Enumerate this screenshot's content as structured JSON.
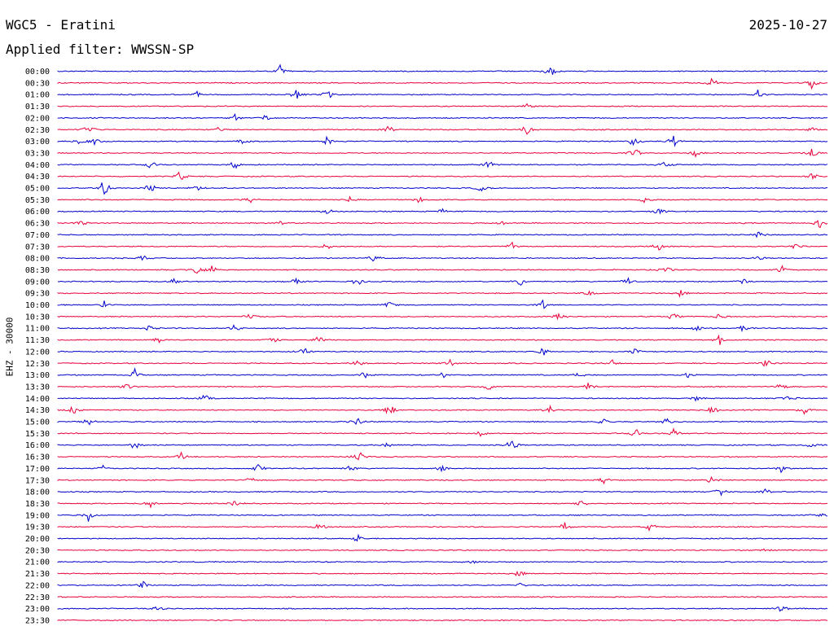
{
  "header": {
    "station": "WGC5 - Eratini",
    "date": "2025-10-27",
    "filter": "Applied filter: WWSSN-SP"
  },
  "colors": {
    "odd_trace": "#0000cc",
    "even_trace": "#e8003a",
    "text": "#000000",
    "background": "#ffffff"
  },
  "chart_data": {
    "type": "line",
    "title": "WGC5 - Eratini",
    "subtitle": "Applied filter: WWSSN-SP",
    "ylabel": "EHZ - 30000",
    "xlabel": "",
    "categories": [
      "00:00",
      "00:30",
      "01:00",
      "01:30",
      "02:00",
      "02:30",
      "03:00",
      "03:30",
      "04:00",
      "04:30",
      "05:00",
      "05:30",
      "06:00",
      "06:30",
      "07:00",
      "07:30",
      "08:00",
      "08:30",
      "09:00",
      "09:30",
      "10:00",
      "10:30",
      "11:00",
      "11:30",
      "12:00",
      "12:30",
      "13:00",
      "13:30",
      "14:00",
      "14:30",
      "15:00",
      "15:30",
      "16:00",
      "16:30",
      "17:00",
      "17:30",
      "18:00",
      "18:30",
      "19:00",
      "19:30",
      "20:00",
      "20:30",
      "21:00",
      "21:30",
      "22:00",
      "22:30",
      "23:00",
      "23:30"
    ],
    "series": [
      {
        "events": [
          [
            0.29,
            10
          ],
          [
            0.64,
            9
          ]
        ]
      },
      {
        "events": [
          [
            0.85,
            9
          ],
          [
            0.98,
            8
          ]
        ]
      },
      {
        "events": [
          [
            0.18,
            4
          ],
          [
            0.31,
            8
          ],
          [
            0.35,
            9
          ],
          [
            0.91,
            7
          ]
        ]
      },
      {
        "events": [
          [
            0.61,
            3
          ]
        ]
      },
      {
        "events": [
          [
            0.23,
            5
          ],
          [
            0.27,
            4
          ]
        ]
      },
      {
        "events": [
          [
            0.04,
            9
          ],
          [
            0.21,
            4
          ],
          [
            0.43,
            8
          ],
          [
            0.61,
            9
          ],
          [
            0.98,
            4
          ]
        ]
      },
      {
        "events": [
          [
            0.03,
            5
          ],
          [
            0.05,
            9
          ],
          [
            0.24,
            4
          ],
          [
            0.35,
            6
          ],
          [
            0.75,
            11
          ],
          [
            0.8,
            8
          ]
        ]
      },
      {
        "events": [
          [
            0.75,
            8
          ],
          [
            0.83,
            6
          ],
          [
            0.98,
            8
          ]
        ]
      },
      {
        "events": [
          [
            0.12,
            6
          ],
          [
            0.23,
            7
          ],
          [
            0.56,
            6
          ],
          [
            0.79,
            6
          ]
        ]
      },
      {
        "events": [
          [
            0.16,
            10
          ],
          [
            0.98,
            6
          ]
        ]
      },
      {
        "events": [
          [
            0.06,
            12
          ],
          [
            0.12,
            8
          ],
          [
            0.18,
            6
          ],
          [
            0.55,
            6
          ]
        ]
      },
      {
        "events": [
          [
            0.25,
            5
          ],
          [
            0.38,
            4
          ],
          [
            0.47,
            5
          ],
          [
            0.76,
            5
          ]
        ]
      },
      {
        "events": [
          [
            0.35,
            5
          ],
          [
            0.5,
            4
          ],
          [
            0.78,
            7
          ]
        ]
      },
      {
        "events": [
          [
            0.03,
            7
          ],
          [
            0.29,
            4
          ],
          [
            0.58,
            4
          ],
          [
            0.99,
            7
          ]
        ]
      },
      {
        "events": [
          [
            0.91,
            6
          ]
        ]
      },
      {
        "events": [
          [
            0.35,
            6
          ],
          [
            0.59,
            6
          ],
          [
            0.78,
            6
          ],
          [
            0.96,
            6
          ]
        ]
      },
      {
        "events": [
          [
            0.11,
            5
          ],
          [
            0.41,
            7
          ],
          [
            0.91,
            4
          ]
        ]
      },
      {
        "events": [
          [
            0.18,
            5
          ],
          [
            0.2,
            6
          ],
          [
            0.79,
            6
          ],
          [
            0.94,
            6
          ]
        ]
      },
      {
        "events": [
          [
            0.15,
            5
          ],
          [
            0.31,
            7
          ],
          [
            0.39,
            8
          ],
          [
            0.6,
            7
          ],
          [
            0.74,
            6
          ],
          [
            0.89,
            6
          ]
        ]
      },
      {
        "events": [
          [
            0.69,
            6
          ],
          [
            0.81,
            6
          ]
        ]
      },
      {
        "events": [
          [
            0.06,
            6
          ],
          [
            0.43,
            6
          ],
          [
            0.63,
            7
          ]
        ]
      },
      {
        "events": [
          [
            0.25,
            6
          ],
          [
            0.65,
            5
          ],
          [
            0.8,
            5
          ],
          [
            0.86,
            5
          ]
        ]
      },
      {
        "events": [
          [
            0.12,
            6
          ],
          [
            0.23,
            6
          ],
          [
            0.83,
            7
          ],
          [
            0.89,
            6
          ]
        ]
      },
      {
        "events": [
          [
            0.13,
            6
          ],
          [
            0.28,
            6
          ],
          [
            0.34,
            6
          ],
          [
            0.86,
            6
          ]
        ]
      },
      {
        "events": [
          [
            0.32,
            6
          ],
          [
            0.63,
            7
          ],
          [
            0.75,
            6
          ]
        ]
      },
      {
        "events": [
          [
            0.39,
            7
          ],
          [
            0.51,
            7
          ],
          [
            0.72,
            7
          ],
          [
            0.92,
            7
          ]
        ]
      },
      {
        "events": [
          [
            0.1,
            7
          ],
          [
            0.4,
            6
          ],
          [
            0.5,
            5
          ],
          [
            0.68,
            6
          ],
          [
            0.82,
            6
          ]
        ]
      },
      {
        "events": [
          [
            0.09,
            6
          ],
          [
            0.56,
            6
          ],
          [
            0.69,
            6
          ],
          [
            0.94,
            6
          ]
        ]
      },
      {
        "events": [
          [
            0.19,
            6
          ],
          [
            0.83,
            5
          ],
          [
            0.95,
            7
          ]
        ]
      },
      {
        "events": [
          [
            0.02,
            7
          ],
          [
            0.43,
            10
          ],
          [
            0.64,
            7
          ],
          [
            0.85,
            8
          ],
          [
            0.97,
            7
          ]
        ]
      },
      {
        "events": [
          [
            0.04,
            7
          ],
          [
            0.39,
            6
          ],
          [
            0.71,
            6
          ],
          [
            0.79,
            6
          ]
        ]
      },
      {
        "events": [
          [
            0.55,
            7
          ],
          [
            0.75,
            7
          ],
          [
            0.8,
            7
          ]
        ]
      },
      {
        "events": [
          [
            0.1,
            6
          ],
          [
            0.43,
            6
          ],
          [
            0.59,
            11
          ],
          [
            0.98,
            6
          ]
        ]
      },
      {
        "events": [
          [
            0.16,
            6
          ],
          [
            0.39,
            10
          ]
        ]
      },
      {
        "events": [
          [
            0.06,
            5
          ],
          [
            0.26,
            7
          ],
          [
            0.38,
            7
          ],
          [
            0.5,
            5
          ],
          [
            0.94,
            6
          ]
        ]
      },
      {
        "events": [
          [
            0.25,
            5
          ],
          [
            0.71,
            5
          ],
          [
            0.85,
            7
          ]
        ]
      },
      {
        "events": [
          [
            0.86,
            7
          ],
          [
            0.92,
            6
          ]
        ]
      },
      {
        "events": [
          [
            0.12,
            7
          ],
          [
            0.23,
            5
          ],
          [
            0.68,
            7
          ]
        ]
      },
      {
        "events": [
          [
            0.04,
            8
          ],
          [
            0.99,
            8
          ]
        ]
      },
      {
        "events": [
          [
            0.34,
            7
          ],
          [
            0.66,
            7
          ],
          [
            0.77,
            6
          ]
        ]
      },
      {
        "events": [
          [
            0.39,
            6
          ]
        ]
      },
      {
        "events": [
          [
            0.92,
            3
          ]
        ]
      },
      {
        "events": [
          [
            0.54,
            2
          ]
        ]
      },
      {
        "events": [
          [
            0.6,
            6
          ]
        ]
      },
      {
        "events": [
          [
            0.11,
            6
          ],
          [
            0.6,
            3
          ]
        ]
      },
      {
        "events": []
      },
      {
        "events": [
          [
            0.13,
            4
          ],
          [
            0.94,
            7
          ]
        ]
      },
      {
        "events": []
      }
    ]
  }
}
